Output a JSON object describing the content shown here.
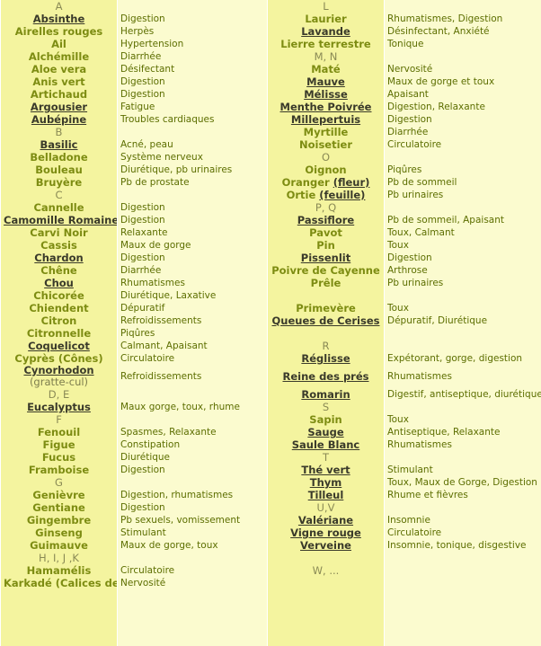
{
  "rows": [
    {
      "left": {
        "section": "A"
      },
      "right": {
        "section": "L"
      }
    },
    {
      "left": {
        "link": "Absinthe",
        "use": "Digestion"
      },
      "right": {
        "name": "Laurier",
        "use": "Rhumatismes, Digestion"
      }
    },
    {
      "left": {
        "name": "Airelles rouges",
        "use": "Herpès"
      },
      "right": {
        "link": "Lavande",
        "use": "Désinfectant, Anxiété"
      }
    },
    {
      "left": {
        "name": "Ail",
        "use": "Hypertension"
      },
      "right": {
        "name": "Lierre terrestre",
        "use": "Tonique"
      }
    },
    {
      "left": {
        "name": "Alchémille",
        "use": "Diarrhée"
      },
      "right": {
        "section": "M, N"
      }
    },
    {
      "left": {
        "name": "Aloe vera",
        "use": "Désifectant"
      },
      "right": {
        "name": "Maté",
        "use": "Nervosité"
      }
    },
    {
      "left": {
        "name": "Anis vert",
        "use": "Digestion"
      },
      "right": {
        "link": "Mauve",
        "use": "Maux de gorge et toux"
      }
    },
    {
      "left": {
        "name": "Artichaud",
        "use": "Digestion"
      },
      "right": {
        "link": "Mélisse",
        "use": "Apaisant"
      }
    },
    {
      "left": {
        "link": "Argousier",
        "use": "Fatigue"
      },
      "right": {
        "link": "Menthe Poivrée",
        "use": "Digestion, Relaxante"
      }
    },
    {
      "left": {
        "link": "Aubépine",
        "use": "Troubles cardiaques"
      },
      "right": {
        "link": "Millepertuis",
        "use": "Digestion"
      }
    },
    {
      "left": {
        "section": "B"
      },
      "right": {
        "name": "Myrtille",
        "use": "Diarrhée"
      }
    },
    {
      "left": {
        "link": "Basilic",
        "use": "Acné, peau"
      },
      "right": {
        "name": "Noisetier",
        "use": "Circulatoire"
      }
    },
    {
      "left": {
        "name": "Belladone",
        "use": "Système nerveux"
      },
      "right": {
        "section": "O"
      }
    },
    {
      "left": {
        "name": "Bouleau",
        "use": "Diurétique, pb urinaires"
      },
      "right": {
        "name": "Oignon",
        "use": "Piqûres"
      }
    },
    {
      "left": {
        "name": "Bruyère",
        "use": "Pb de prostate"
      },
      "right": {
        "name": "Oranger",
        "link": "(fleur)",
        "use": "Pb de sommeil"
      }
    },
    {
      "left": {
        "section": "C"
      },
      "right": {
        "name": "Ortie",
        "link": "(feuille)",
        "use": "Pb urinaires"
      }
    },
    {
      "left": {
        "name": "Cannelle",
        "use": "Digestion"
      },
      "right": {
        "section": "P, Q"
      }
    },
    {
      "left": {
        "link": "Camomille Romaine",
        "use": "Digestion"
      },
      "right": {
        "link": "Passiflore",
        "use": "Pb de sommeil, Apaisant"
      }
    },
    {
      "left": {
        "name": "Carvi Noir",
        "use": "Relaxante"
      },
      "right": {
        "name": "Pavot",
        "use": "Toux, Calmant"
      }
    },
    {
      "left": {
        "name": "Cassis",
        "use": "Maux de gorge"
      },
      "right": {
        "name": "Pin",
        "use": "Toux"
      }
    },
    {
      "left": {
        "link": "Chardon",
        "use": "Digestion"
      },
      "right": {
        "link": "Pissenlit",
        "use": "Digestion"
      }
    },
    {
      "left": {
        "name": "Chêne",
        "use": "Diarrhée"
      },
      "right": {
        "name": "Poivre de Cayenne",
        "use": "Arthrose"
      }
    },
    {
      "left": {
        "link": "Chou",
        "use": "Rhumatismes"
      },
      "right": {
        "name": "Prêle",
        "use": "Pb urinaires"
      }
    },
    {
      "left": {
        "name": "Chicorée",
        "use": "Diurétique, Laxative"
      },
      "right": null
    },
    {
      "left": {
        "name": "Chiendent",
        "use": "Dépuratif"
      },
      "right": {
        "name": "Primevère",
        "use": "Toux"
      }
    },
    {
      "left": {
        "name": "Citron",
        "use": "Refroidissements"
      },
      "right": {
        "link": "Queues de Cerises",
        "use": "Dépuratif, Diurétique"
      }
    },
    {
      "left": {
        "name": "Citronnelle",
        "use": "Piqûres"
      },
      "right": null
    },
    {
      "left": {
        "link": "Coquelicot",
        "use": "Calmant, Apaisant"
      },
      "right": {
        "section": "R"
      }
    },
    {
      "left": {
        "name": "Cyprès (Cônes)",
        "use": "Circulatoire"
      },
      "right": {
        "link": "Réglisse",
        "use": "Expétorant, gorge, digestion"
      }
    },
    {
      "left": {
        "link": "Cynorhodon",
        "note": "(gratte-cul)",
        "use": "Refroidissements"
      },
      "right": {
        "link": "Reine des prés",
        "use": "Rhumatismes"
      }
    },
    {
      "left": {
        "section": "D, E"
      },
      "right": {
        "link": "Romarin",
        "use": "Digestif, antiseptique, diurétique"
      }
    },
    {
      "left": {
        "link": "Eucalyptus",
        "use": "Maux gorge, toux, rhume"
      },
      "right": {
        "section": "S"
      }
    },
    {
      "left": {
        "section": "F"
      },
      "right": {
        "name": "Sapin",
        "use": "Toux"
      }
    },
    {
      "left": {
        "name": "Fenouil",
        "use": "Spasmes, Relaxante"
      },
      "right": {
        "link": "Sauge",
        "use": "Antiseptique, Relaxante"
      }
    },
    {
      "left": {
        "name": "Figue",
        "use": "Constipation"
      },
      "right": {
        "link": "Saule Blanc",
        "use": "Rhumatismes"
      }
    },
    {
      "left": {
        "name": "Fucus",
        "use": "Diurétique"
      },
      "right": {
        "section": "T"
      }
    },
    {
      "left": {
        "name": "Framboise",
        "use": "Digestion"
      },
      "right": {
        "link": "Thé vert",
        "use": "Stimulant"
      }
    },
    {
      "left": {
        "section": "G"
      },
      "right": {
        "link": "Thym",
        "use": "Toux, Maux de Gorge, Digestion"
      }
    },
    {
      "left": {
        "name": "Genièvre",
        "use": "Digestion, rhumatismes"
      },
      "right": {
        "link": "Tilleul",
        "use": "Rhume et fièvres"
      }
    },
    {
      "left": {
        "name": "Gentiane",
        "use": "Digestion"
      },
      "right": {
        "section": "U,V"
      }
    },
    {
      "left": {
        "name": "Gingembre",
        "use": "Pb sexuels, vomissement"
      },
      "right": {
        "link": "Valériane",
        "use": "Insomnie"
      }
    },
    {
      "left": {
        "name": "Ginseng",
        "use": "Stimulant"
      },
      "right": {
        "link": "Vigne rouge",
        "use": "Circulatoire"
      }
    },
    {
      "left": {
        "name": "Guimauve",
        "use": "Maux de gorge, toux"
      },
      "right": {
        "link": "Verveine",
        "use": "Insomnie, tonique, disgestive"
      }
    },
    {
      "left": {
        "section": "H, I, J ,K"
      },
      "right": null
    },
    {
      "left": {
        "name": "Hamamélis",
        "use": "Circulatoire"
      },
      "right": {
        "section": "W, ..."
      }
    },
    {
      "left": {
        "name": "Karkadé (Calices de)",
        "use": "Nervosité"
      },
      "right": null
    },
    {
      "left": null,
      "right": null
    }
  ]
}
